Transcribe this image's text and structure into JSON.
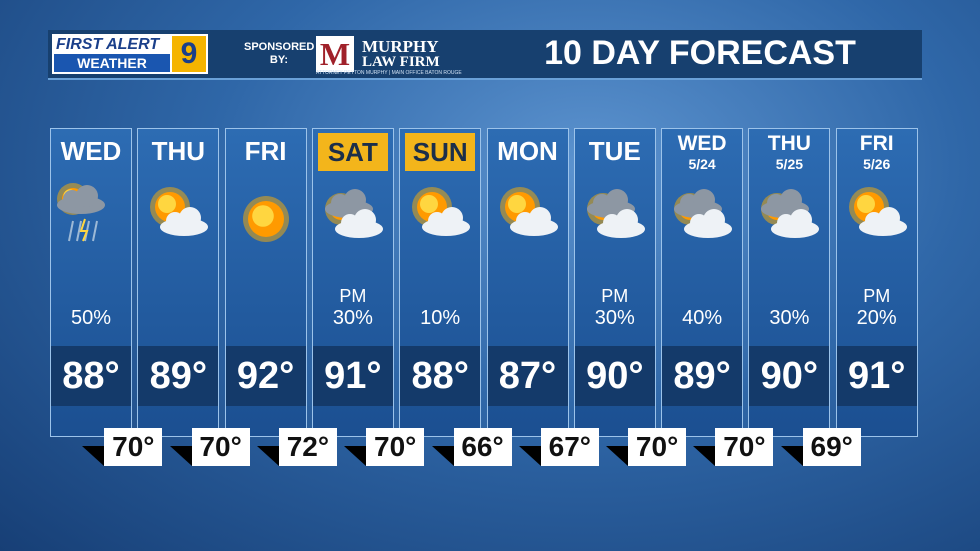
{
  "header": {
    "logo_top": "FIRST ALERT",
    "logo_bottom": "WEATHER",
    "logo_number": "9",
    "sponsored": "SPONSORED BY:",
    "sponsor_initial": "M",
    "sponsor_line1": "MURPHY",
    "sponsor_line2": "LAW FIRM",
    "sponsor_tagline": "ATTORNEY PEYTON MURPHY | MAIN OFFICE BATON ROUGE",
    "title": "10 DAY FORECAST"
  },
  "days": [
    {
      "day": "WED",
      "precip": "50%",
      "high": "88°"
    },
    {
      "day": "THU",
      "high": "89°"
    },
    {
      "day": "FRI",
      "high": "92°"
    },
    {
      "day": "SAT",
      "precip_time": "PM",
      "precip": "30%",
      "high": "91°"
    },
    {
      "day": "SUN",
      "precip": "10%",
      "high": "88°"
    },
    {
      "day": "MON",
      "high": "87°"
    },
    {
      "day": "TUE",
      "precip_time": "PM",
      "precip": "30%",
      "high": "90°"
    },
    {
      "day": "WED",
      "date": "5/24",
      "precip": "40%",
      "high": "89°"
    },
    {
      "day": "THU",
      "date": "5/25",
      "precip": "30%",
      "high": "90°"
    },
    {
      "day": "FRI",
      "date": "5/26",
      "precip_time": "PM",
      "precip": "20%",
      "high": "91°"
    }
  ],
  "lows": [
    "70°",
    "70°",
    "72°",
    "70°",
    "66°",
    "67°",
    "70°",
    "70°",
    "69°"
  ]
}
